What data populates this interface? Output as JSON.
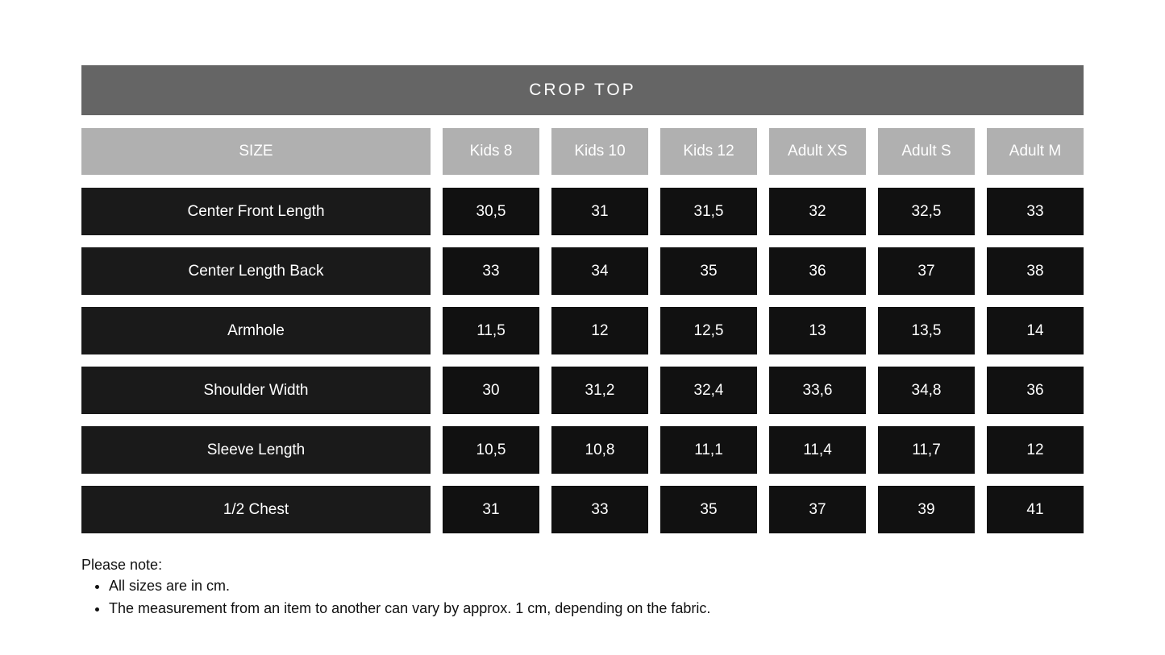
{
  "title": "CROP TOP",
  "header": [
    "SIZE",
    "Kids 8",
    "Kids 10",
    "Kids 12",
    "Adult XS",
    "Adult S",
    "Adult M"
  ],
  "rows": [
    {
      "label": "Center Front Length",
      "values": [
        "30,5",
        "31",
        "31,5",
        "32",
        "32,5",
        "33"
      ]
    },
    {
      "label": "Center Length Back",
      "values": [
        "33",
        "34",
        "35",
        "36",
        "37",
        "38"
      ]
    },
    {
      "label": "Armhole",
      "values": [
        "11,5",
        "12",
        "12,5",
        "13",
        "13,5",
        "14"
      ]
    },
    {
      "label": "Shoulder Width",
      "values": [
        "30",
        "31,2",
        "32,4",
        "33,6",
        "34,8",
        "36"
      ]
    },
    {
      "label": "Sleeve Length",
      "values": [
        "10,5",
        "10,8",
        "11,1",
        "11,4",
        "11,7",
        "12"
      ]
    },
    {
      "label": "1/2 Chest",
      "values": [
        "31",
        "33",
        "35",
        "37",
        "39",
        "41"
      ]
    }
  ],
  "notes": {
    "heading": "Please note:",
    "items": [
      "All sizes are in cm.",
      "The measurement from an item to another can vary by approx. 1 cm, depending on the fabric."
    ]
  },
  "colors": {
    "title_bg": "#656565",
    "header_bg": "#b0b0b0",
    "cell_bg": "#111111"
  }
}
